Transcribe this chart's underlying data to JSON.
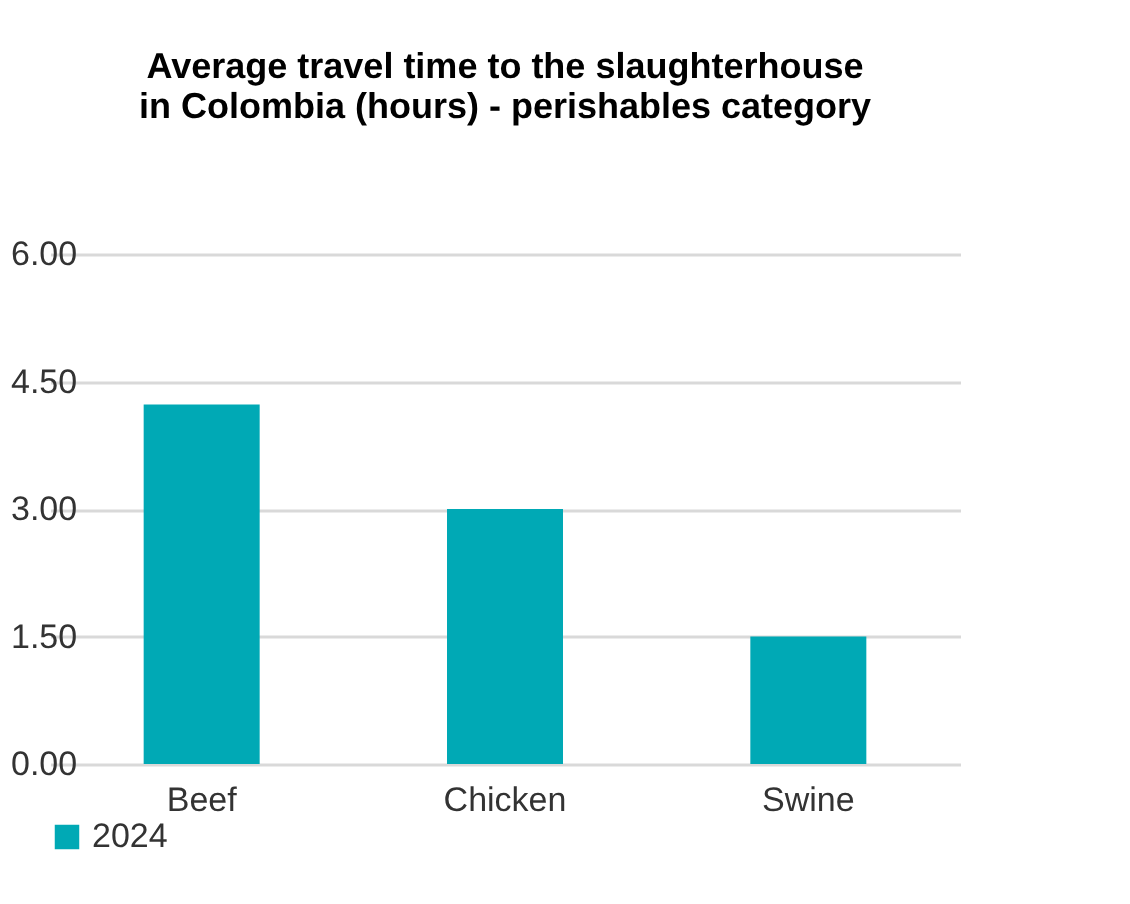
{
  "chart_data": {
    "type": "bar",
    "title": [
      "Average travel time to the slaughterhouse",
      "in Colombia (hours) - perishables category"
    ],
    "categories": [
      "Beef",
      "Chicken",
      "Swine"
    ],
    "series": [
      {
        "name": "2024",
        "color": "#00a9b5",
        "values": [
          4.23,
          3.0,
          1.5
        ]
      }
    ],
    "ylim": [
      0,
      6
    ],
    "yticks": [
      {
        "value": 0,
        "label": "0.00"
      },
      {
        "value": 1.5,
        "label": "1.50"
      },
      {
        "value": 3,
        "label": "3.00"
      },
      {
        "value": 4.5,
        "label": "4.50"
      },
      {
        "value": 6,
        "label": "6.00"
      }
    ],
    "grid": "y",
    "legend": "bottom"
  }
}
